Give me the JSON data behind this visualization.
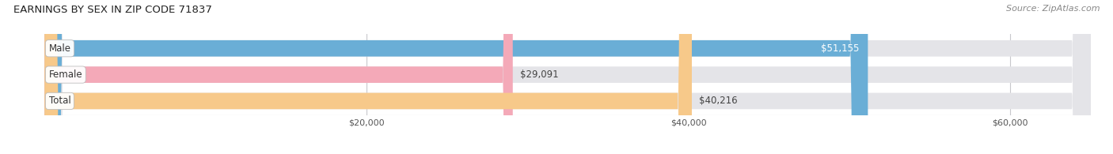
{
  "title": "EARNINGS BY SEX IN ZIP CODE 71837",
  "source": "Source: ZipAtlas.com",
  "categories": [
    "Male",
    "Female",
    "Total"
  ],
  "values": [
    51155,
    29091,
    40216
  ],
  "bar_colors": [
    "#6aaed6",
    "#f4a9b8",
    "#f7c98a"
  ],
  "value_labels": [
    "$51,155",
    "$29,091",
    "$40,216"
  ],
  "value_label_inside": [
    true,
    false,
    false
  ],
  "value_label_colors_inside": [
    "#ffffff",
    "#555555",
    "#555555"
  ],
  "bar_bg_color": "#e4e4e8",
  "xlim": [
    0,
    65000
  ],
  "xticks": [
    20000,
    40000,
    60000
  ],
  "xtick_labels": [
    "$20,000",
    "$40,000",
    "$60,000"
  ],
  "figsize": [
    14.06,
    1.95
  ],
  "dpi": 100,
  "title_fontsize": 9.5,
  "source_fontsize": 8,
  "bar_label_fontsize": 8.5,
  "category_fontsize": 8.5,
  "xtick_fontsize": 8,
  "bar_height": 0.62,
  "background_color": "#ffffff",
  "grid_color": "#c8c8cc",
  "bar_spacing": 1.0
}
